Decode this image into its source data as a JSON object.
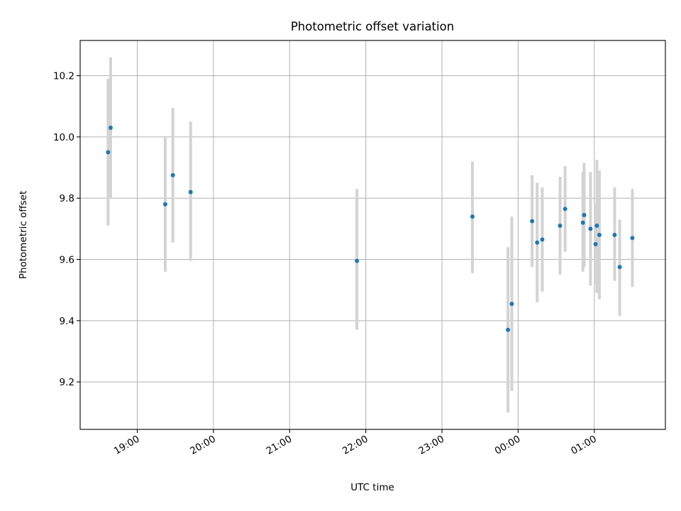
{
  "chart_data": {
    "type": "scatter",
    "title": "Photometric offset variation",
    "xlabel": "UTC time",
    "ylabel": "Photometric offset",
    "x_type": "time",
    "xlim": [
      "18:15",
      "01:56"
    ],
    "ylim": [
      9.045,
      10.315
    ],
    "x_ticks": [
      "19:00",
      "20:00",
      "21:00",
      "22:00",
      "23:00",
      "00:00",
      "01:00"
    ],
    "y_ticks": [
      "9.2",
      "9.4",
      "9.6",
      "9.8",
      "10.0",
      "10.2"
    ],
    "grid": true,
    "error_bar_color": "#d3d3d3",
    "point_color": "#1f77b4",
    "series": [
      {
        "points": [
          {
            "t": "18:37",
            "y": 9.95,
            "lo": 9.71,
            "hi": 10.19
          },
          {
            "t": "18:39",
            "y": 10.03,
            "lo": 9.8,
            "hi": 10.26
          },
          {
            "t": "19:22",
            "y": 9.78,
            "lo": 9.56,
            "hi": 10.0
          },
          {
            "t": "19:28",
            "y": 9.875,
            "lo": 9.655,
            "hi": 10.095
          },
          {
            "t": "19:42",
            "y": 9.82,
            "lo": 9.595,
            "hi": 10.05
          },
          {
            "t": "21:53",
            "y": 9.595,
            "lo": 9.37,
            "hi": 9.83
          },
          {
            "t": "23:24",
            "y": 9.74,
            "lo": 9.555,
            "hi": 9.92
          },
          {
            "t": "23:52",
            "y": 9.37,
            "lo": 9.1,
            "hi": 9.64
          },
          {
            "t": "23:55",
            "y": 9.455,
            "lo": 9.17,
            "hi": 9.74
          },
          {
            "t": "00:11",
            "y": 9.725,
            "lo": 9.575,
            "hi": 9.875
          },
          {
            "t": "00:15",
            "y": 9.655,
            "lo": 9.46,
            "hi": 9.85
          },
          {
            "t": "00:19",
            "y": 9.665,
            "lo": 9.495,
            "hi": 9.835
          },
          {
            "t": "00:33",
            "y": 9.71,
            "lo": 9.55,
            "hi": 9.87
          },
          {
            "t": "00:37",
            "y": 9.765,
            "lo": 9.625,
            "hi": 9.905
          },
          {
            "t": "00:51",
            "y": 9.72,
            "lo": 9.56,
            "hi": 9.885
          },
          {
            "t": "00:52",
            "y": 9.745,
            "lo": 9.575,
            "hi": 9.915
          },
          {
            "t": "00:57",
            "y": 9.7,
            "lo": 9.515,
            "hi": 9.885
          },
          {
            "t": "01:01",
            "y": 9.65,
            "lo": 9.52,
            "hi": 9.78
          },
          {
            "t": "01:02",
            "y": 9.71,
            "lo": 9.49,
            "hi": 9.925
          },
          {
            "t": "01:04",
            "y": 9.68,
            "lo": 9.47,
            "hi": 9.89
          },
          {
            "t": "01:16",
            "y": 9.68,
            "lo": 9.53,
            "hi": 9.835
          },
          {
            "t": "01:20",
            "y": 9.575,
            "lo": 9.415,
            "hi": 9.73
          },
          {
            "t": "01:30",
            "y": 9.67,
            "lo": 9.51,
            "hi": 9.83
          }
        ]
      }
    ]
  }
}
